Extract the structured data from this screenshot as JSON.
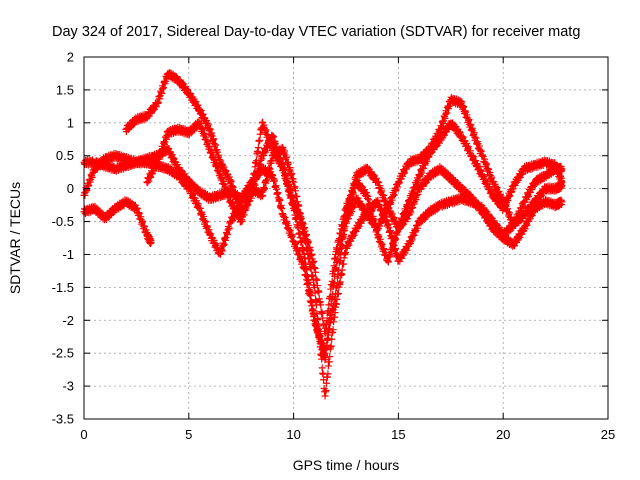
{
  "chart_data": {
    "type": "scatter",
    "title": "Day 324 of 2017, Sidereal Day-to-day VTEC variation (SDTVAR) for receiver matg",
    "xlabel": "GPS time / hours",
    "ylabel": "SDTVAR / TECUs",
    "xlim": [
      0,
      25
    ],
    "ylim": [
      -3.5,
      2
    ],
    "xticks": [
      "0",
      "5",
      "10",
      "15",
      "20",
      "25"
    ],
    "yticks": [
      "-3.5",
      "-3",
      "-2.5",
      "-2",
      "-1.5",
      "-1",
      "-0.5",
      "0",
      "0.5",
      "1",
      "1.5",
      "2"
    ],
    "grid": true,
    "marker": "plus",
    "color": "#ff0000",
    "series": [
      {
        "x": [
          0,
          0.5,
          1,
          1.5,
          2,
          2.5,
          3,
          3.2
        ],
        "y": [
          -0.35,
          -0.3,
          -0.45,
          -0.3,
          -0.2,
          -0.3,
          -0.7,
          -0.82
        ]
      },
      {
        "x": [
          0,
          0.5,
          1,
          1.5,
          2,
          2.5,
          3,
          3.5,
          4,
          4.5,
          5,
          5.5,
          6,
          6.5,
          7,
          7.5,
          8,
          8.5,
          9,
          9.5,
          10,
          10.5,
          11,
          11.5,
          12,
          12.5,
          13,
          13.5,
          14,
          14.5,
          15,
          15.5,
          16,
          16.5,
          17,
          17.5,
          18,
          18.5,
          19,
          19.5,
          20,
          20.5,
          21,
          21.5,
          22,
          22.5,
          22.8
        ],
        "y": [
          -0.1,
          0.3,
          0.45,
          0.5,
          0.45,
          0.4,
          0.45,
          0.5,
          0.6,
          0.3,
          0.1,
          -0.05,
          -0.15,
          -0.1,
          -0.05,
          -0.15,
          0.1,
          0.3,
          0.2,
          -0.4,
          -0.8,
          -1.2,
          -2.0,
          -2.5,
          -1.6,
          -0.4,
          0.2,
          0.3,
          0.1,
          -0.3,
          -0.6,
          -0.4,
          0,
          0.2,
          0.3,
          0.15,
          0.0,
          -0.15,
          -0.35,
          -0.6,
          -0.75,
          -0.85,
          -0.6,
          -0.3,
          -0.2,
          -0.25,
          -0.2
        ]
      },
      {
        "x": [
          0,
          0.5,
          1,
          1.5,
          2,
          2.5,
          3,
          3.5,
          4,
          4.5,
          5,
          5.5,
          6,
          6.5,
          7,
          7.5,
          8,
          8.5,
          9,
          9.5,
          10,
          10.5,
          11,
          11.5,
          12,
          12.5,
          13,
          13.5,
          14,
          14.5,
          15,
          15.5,
          16,
          16.5,
          17,
          17.5,
          18,
          18.5,
          19,
          19.5,
          20,
          20.5,
          21,
          21.5,
          22,
          22.5,
          22.8
        ],
        "y": [
          0.4,
          0.4,
          0.35,
          0.3,
          0.35,
          0.4,
          0.4,
          0.35,
          0.3,
          0.2,
          0.0,
          -0.3,
          -0.7,
          -1.0,
          -0.5,
          -0.2,
          0.0,
          -0.1,
          0.5,
          0.6,
          0.1,
          -0.7,
          -1.5,
          -3.15,
          -1.8,
          -0.9,
          -0.6,
          -0.35,
          -0.2,
          -0.55,
          -1.1,
          -0.85,
          -0.5,
          -0.35,
          -0.25,
          -0.2,
          -0.15,
          -0.2,
          -0.3,
          -0.5,
          -0.7,
          -0.55,
          -0.2,
          0.1,
          0.2,
          0.3,
          0.3
        ]
      },
      {
        "x": [
          2,
          2.5,
          3,
          3.5,
          4,
          4.5,
          5,
          5.5,
          6,
          6.5,
          7,
          7.5,
          8,
          8.5,
          9,
          9.5,
          10,
          10.5,
          11,
          11.5,
          12,
          12.5,
          13,
          13.5,
          14,
          14.5,
          15,
          15.5,
          16,
          16.5,
          17,
          17.5,
          18,
          18.5,
          19,
          19.5,
          20,
          20.5,
          21,
          21.5,
          22,
          22.5,
          22.8
        ],
        "y": [
          0.9,
          1.05,
          1.1,
          1.3,
          1.75,
          1.65,
          1.45,
          1.2,
          0.9,
          0.4,
          0.1,
          -0.4,
          -0.1,
          0.5,
          0.8,
          0.3,
          -0.3,
          -1.0,
          -2.0,
          -2.6,
          -1.2,
          -0.5,
          -0.15,
          -0.4,
          -0.6,
          -0.3,
          0.1,
          0.4,
          0.45,
          0.6,
          0.9,
          1.35,
          1.3,
          0.9,
          0.5,
          0.1,
          -0.2,
          -0.55,
          -0.4,
          -0.2,
          0.0,
          0.0,
          0.05
        ]
      },
      {
        "x": [
          3,
          3.5,
          4,
          4.5,
          5,
          5.5,
          6,
          6.5,
          7,
          7.5,
          8,
          8.5,
          9,
          9.5,
          10,
          10.5,
          11,
          11.5,
          12,
          12.5,
          13,
          13.5,
          14,
          14.5,
          15,
          15.5,
          16,
          16.5,
          17,
          17.5,
          18,
          18.5,
          19,
          19.5,
          20,
          20.5,
          21,
          21.5,
          22,
          22.5,
          22.8
        ],
        "y": [
          0.1,
          0.4,
          0.85,
          0.9,
          0.85,
          1.0,
          0.6,
          0.2,
          -0.2,
          -0.5,
          0.0,
          1.0,
          0.6,
          0.3,
          -0.2,
          -0.6,
          -1.2,
          -2.2,
          -1.0,
          -0.3,
          0.1,
          -0.1,
          -0.7,
          -1.1,
          -0.6,
          -0.2,
          0.2,
          0.55,
          0.75,
          1.0,
          0.8,
          0.5,
          0.2,
          -0.1,
          -0.3,
          0.05,
          0.3,
          0.35,
          0.4,
          0.35,
          0.1
        ]
      }
    ]
  }
}
